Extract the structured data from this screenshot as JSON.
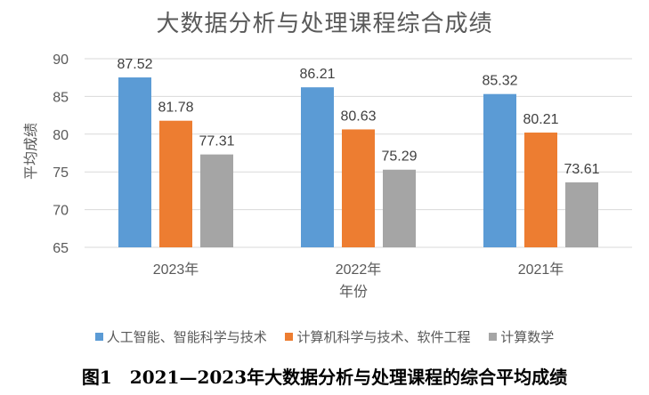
{
  "caption": "图1　2021—2023年大数据分析与处理课程的综合平均成绩",
  "chart_data": {
    "type": "bar",
    "title": "大数据分析与处理课程综合成绩",
    "xlabel": "年份",
    "ylabel": "平均成绩",
    "categories": [
      "2023年",
      "2022年",
      "2021年"
    ],
    "ylim": [
      65,
      90
    ],
    "yticks": [
      65,
      70,
      75,
      80,
      85,
      90
    ],
    "grid": true,
    "legend_position": "bottom",
    "series": [
      {
        "name": "人工智能、智能科学与技术",
        "color": "#5b9bd5",
        "values": [
          87.52,
          86.21,
          85.32
        ]
      },
      {
        "name": "计算机科学与技术、软件工程",
        "color": "#ed7d31",
        "values": [
          81.78,
          80.63,
          80.21
        ]
      },
      {
        "name": "计算数学",
        "color": "#a5a5a5",
        "values": [
          77.31,
          75.29,
          73.61
        ]
      }
    ]
  }
}
